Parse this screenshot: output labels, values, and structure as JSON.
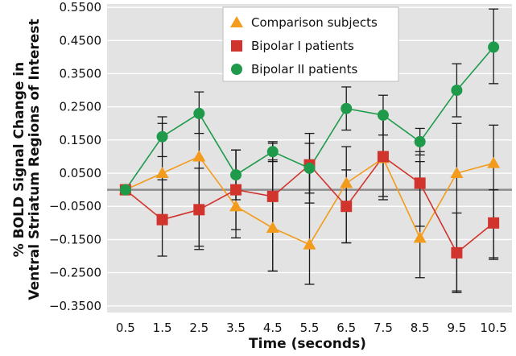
{
  "chart_data": {
    "type": "line",
    "title": "",
    "xlabel": "Time (seconds)",
    "ylabel_line1": "% BOLD Signal Change in",
    "ylabel_line2": "Ventral Striatum Regions of Interest",
    "x": [
      0.5,
      1.5,
      2.5,
      3.5,
      4.5,
      5.5,
      6.5,
      7.5,
      8.5,
      9.5,
      10.5
    ],
    "x_tick_labels": [
      "0.5",
      "1.5",
      "2.5",
      "3.5",
      "4.5",
      "5.5",
      "6.5",
      "7.5",
      "8.5",
      "9.5",
      "10.5"
    ],
    "y_ticks": [
      0.55,
      0.45,
      0.35,
      0.25,
      0.15,
      0.05,
      -0.05,
      -0.15,
      -0.25,
      -0.35
    ],
    "y_tick_labels": [
      "0.5500",
      "0.4500",
      "0.3500",
      "0.2500",
      "0.1500",
      "0.0500",
      "−0.0500",
      "−0.1500",
      "−0.2500",
      "−0.3500"
    ],
    "ylim": [
      -0.37,
      0.56
    ],
    "xlim": [
      0.0,
      11.0
    ],
    "grid": true,
    "background": "#e3e3e3",
    "legend_position": "top-center",
    "series": [
      {
        "name": "Comparison subjects",
        "marker": "triangle",
        "color": "#f29b1d",
        "values": [
          0.0,
          0.05,
          0.1,
          -0.05,
          -0.115,
          -0.165,
          0.02,
          0.095,
          -0.145,
          0.05,
          0.08
        ],
        "err_low": [
          -0.005,
          -0.1,
          -0.17,
          -0.145,
          -0.245,
          -0.285,
          -0.16,
          -0.03,
          -0.265,
          -0.305,
          -0.205
        ],
        "err_high": [
          0.005,
          0.2,
          0.235,
          0.12,
          0.14,
          0.09,
          0.13,
          0.225,
          0.085,
          0.2,
          0.195
        ]
      },
      {
        "name": "Bipolar I patients",
        "marker": "square",
        "color": "#d0342c",
        "values": [
          0.0,
          -0.09,
          -0.06,
          0.0,
          -0.02,
          0.075,
          -0.05,
          0.1,
          0.02,
          -0.19,
          -0.1
        ],
        "err_low": [
          -0.005,
          -0.2,
          -0.18,
          -0.12,
          -0.245,
          -0.04,
          -0.16,
          -0.02,
          -0.11,
          -0.31,
          -0.21
        ],
        "err_high": [
          0.005,
          0.03,
          0.065,
          0.12,
          0.09,
          0.17,
          0.06,
          0.225,
          0.115,
          -0.07,
          0.0
        ]
      },
      {
        "name": "Bipolar II patients",
        "marker": "circle",
        "color": "#1e9a4a",
        "values": [
          0.0,
          0.16,
          0.23,
          0.045,
          0.115,
          0.065,
          0.245,
          0.225,
          0.145,
          0.3,
          0.43
        ],
        "err_low": [
          -0.005,
          0.1,
          0.17,
          -0.03,
          0.085,
          -0.01,
          0.18,
          0.165,
          0.105,
          0.22,
          0.32
        ],
        "err_high": [
          0.005,
          0.22,
          0.295,
          0.12,
          0.145,
          0.14,
          0.31,
          0.285,
          0.185,
          0.38,
          0.545
        ]
      }
    ]
  }
}
